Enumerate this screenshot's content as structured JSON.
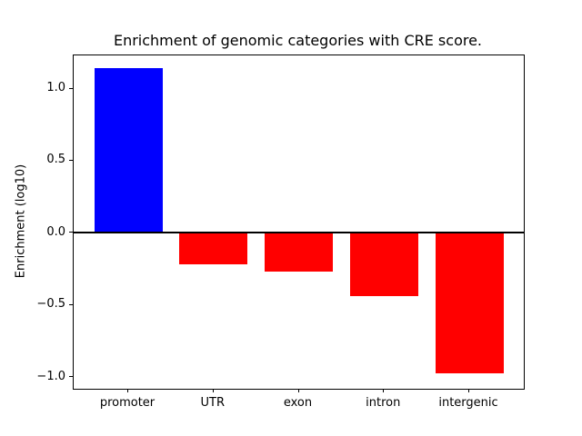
{
  "chart_data": {
    "type": "bar",
    "title": "Enrichment of genomic categories with CRE score.",
    "xlabel": "",
    "ylabel": "Enrichment (log10)",
    "categories": [
      "promoter",
      "UTR",
      "exon",
      "intron",
      "intergenic"
    ],
    "values": [
      1.14,
      -0.22,
      -0.27,
      -0.44,
      -0.97
    ],
    "bar_colors": [
      "#0000ff",
      "#ff0000",
      "#ff0000",
      "#ff0000",
      "#ff0000"
    ],
    "bar_width": 0.8,
    "ylim": [
      -1.08,
      1.23
    ],
    "xlim": [
      -0.64,
      4.64
    ],
    "yticks": [
      -1.0,
      -0.5,
      0.0,
      0.5,
      1.0
    ],
    "ytick_labels": [
      "−1.0",
      "−0.5",
      "0.0",
      "0.5",
      "1.0"
    ],
    "zero_line": true,
    "grid": false,
    "legend_position": "none",
    "colors": {
      "positive_bar": "#0000ff",
      "negative_bar": "#ff0000",
      "axis": "#000000",
      "background": "#ffffff"
    }
  }
}
